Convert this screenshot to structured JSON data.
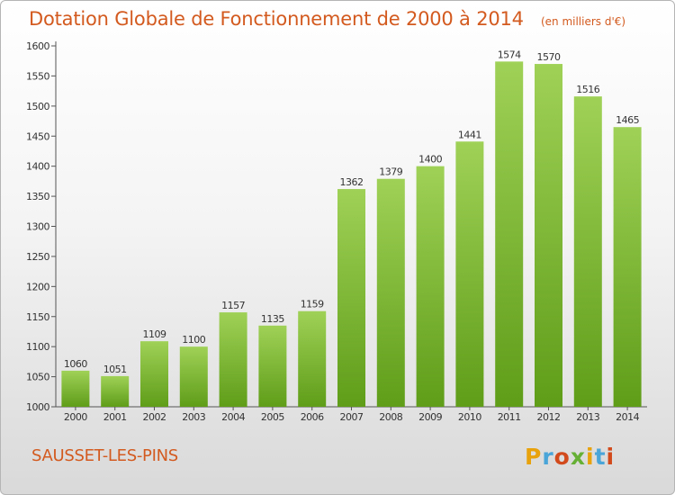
{
  "header": {
    "title": "Dotation Globale de Fonctionnement de 2000 à 2014",
    "unit": "(en milliers d'€)"
  },
  "footer": {
    "commune": "SAUSSET-LES-PINS",
    "logo": "Proxiti"
  },
  "colors": {
    "title": "#d35a1f",
    "bar_light": "#9fd157",
    "bar_dark": "#5f9d18",
    "axis": "#555555"
  },
  "chart_data": {
    "type": "bar",
    "title": "Dotation Globale de Fonctionnement de 2000 à 2014",
    "subtitle": "(en milliers d'€)",
    "xlabel": "",
    "ylabel": "",
    "categories": [
      "2000",
      "2001",
      "2002",
      "2003",
      "2004",
      "2005",
      "2006",
      "2007",
      "2008",
      "2009",
      "2010",
      "2011",
      "2012",
      "2013",
      "2014"
    ],
    "values": [
      1060,
      1051,
      1109,
      1100,
      1157,
      1135,
      1159,
      1362,
      1379,
      1400,
      1441,
      1574,
      1570,
      1516,
      1465
    ],
    "ylim": [
      1000,
      1600
    ],
    "yticks": [
      1000,
      1050,
      1100,
      1150,
      1200,
      1250,
      1300,
      1350,
      1400,
      1450,
      1500,
      1550,
      1600
    ],
    "grid": false,
    "legend": "none"
  }
}
